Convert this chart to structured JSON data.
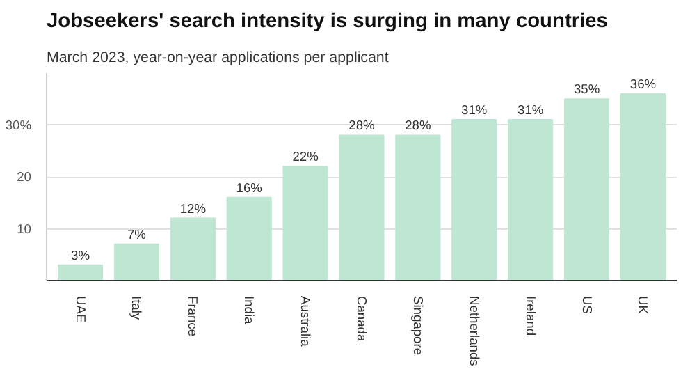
{
  "chart_data": {
    "type": "bar",
    "title": "Jobseekers' search intensity is surging in many countries",
    "subtitle": "March 2023, year-on-year applications per applicant",
    "categories": [
      "UAE",
      "Italy",
      "France",
      "India",
      "Australia",
      "Canada",
      "Singapore",
      "Netherlands",
      "Ireland",
      "US",
      "UK"
    ],
    "values": [
      3,
      7,
      12,
      16,
      22,
      28,
      28,
      31,
      31,
      35,
      36
    ],
    "value_labels": [
      "3%",
      "7%",
      "12%",
      "16%",
      "22%",
      "28%",
      "28%",
      "31%",
      "31%",
      "35%",
      "36%"
    ],
    "color": "#bfe6d3",
    "ylim": [
      0,
      40
    ],
    "yticks": [
      {
        "value": 0,
        "label": null
      },
      10,
      20,
      {
        "value": 30,
        "label": "30%"
      }
    ],
    "grid": "y"
  }
}
